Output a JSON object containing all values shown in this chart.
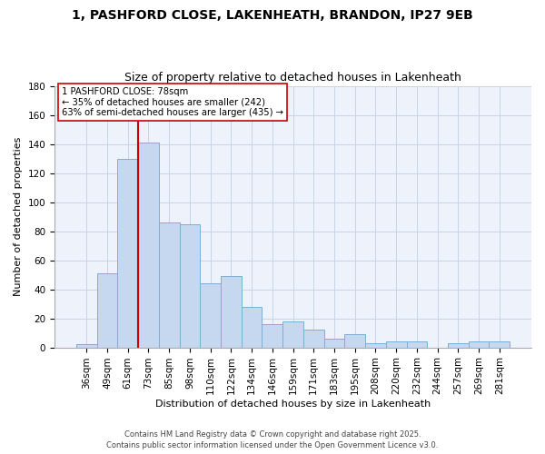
{
  "title": "1, PASHFORD CLOSE, LAKENHEATH, BRANDON, IP27 9EB",
  "subtitle": "Size of property relative to detached houses in Lakenheath",
  "xlabel": "Distribution of detached houses by size in Lakenheath",
  "ylabel": "Number of detached properties",
  "categories": [
    "36sqm",
    "49sqm",
    "61sqm",
    "73sqm",
    "85sqm",
    "98sqm",
    "110sqm",
    "122sqm",
    "134sqm",
    "146sqm",
    "159sqm",
    "171sqm",
    "183sqm",
    "195sqm",
    "208sqm",
    "220sqm",
    "232sqm",
    "244sqm",
    "257sqm",
    "269sqm",
    "281sqm"
  ],
  "values": [
    2,
    51,
    130,
    141,
    86,
    85,
    44,
    49,
    28,
    16,
    18,
    12,
    6,
    9,
    3,
    4,
    4,
    0,
    3,
    4,
    4
  ],
  "bar_color": "#c5d8f0",
  "bar_edge_color": "#7bafd4",
  "vline_index": 3,
  "vline_color": "#cc0000",
  "ylim": [
    0,
    180
  ],
  "yticks": [
    0,
    20,
    40,
    60,
    80,
    100,
    120,
    140,
    160,
    180
  ],
  "annotation_line1": "1 PASHFORD CLOSE: 78sqm",
  "annotation_line2": "← 35% of detached houses are smaller (242)",
  "annotation_line3": "63% of semi-detached houses are larger (435) →",
  "footer1": "Contains HM Land Registry data © Crown copyright and database right 2025.",
  "footer2": "Contains public sector information licensed under the Open Government Licence v3.0.",
  "background_color": "#eef3fb",
  "grid_color": "#c8d4e8",
  "title_fontsize": 10,
  "subtitle_fontsize": 9,
  "axis_label_fontsize": 8,
  "tick_fontsize": 7.5,
  "footer_fontsize": 6
}
